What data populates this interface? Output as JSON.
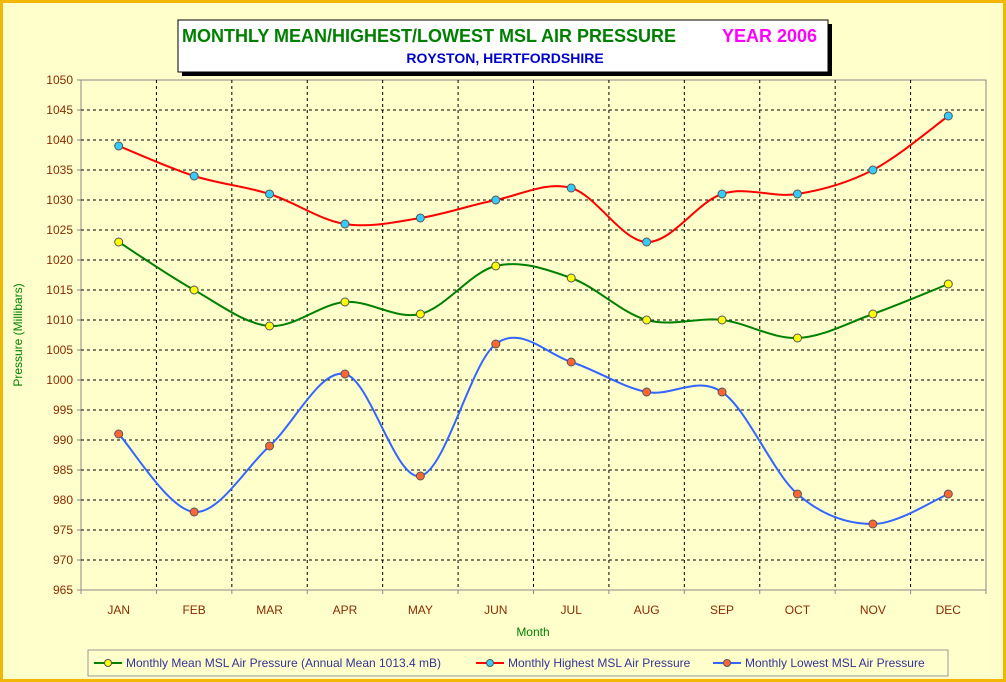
{
  "chart_data": {
    "type": "line",
    "title": "MONTHLY MEAN/HIGHEST/LOWEST MSL AIR PRESSURE",
    "title_year": "YEAR 2006",
    "subtitle": "ROYSTON, HERTFORDSHIRE",
    "xlabel": "Month",
    "ylabel": "Pressure (Millibars)",
    "ylim": [
      965,
      1050
    ],
    "ytick_step": 5,
    "grid": true,
    "legend_position": "bottom",
    "categories": [
      "JAN",
      "FEB",
      "MAR",
      "APR",
      "MAY",
      "JUN",
      "JUL",
      "AUG",
      "SEP",
      "OCT",
      "NOV",
      "DEC"
    ],
    "series": [
      {
        "name": "Monthly Mean MSL Air Pressure (Annual Mean 1013.4 mB)",
        "line_color": "#008000",
        "marker_color": "#ffff00",
        "values": [
          1023,
          1015,
          1009,
          1013,
          1011,
          1019,
          1017,
          1010,
          1010,
          1007,
          1011,
          1016
        ]
      },
      {
        "name": "Monthly Highest MSL Air Pressure",
        "line_color": "#ff0000",
        "marker_color": "#33ccff",
        "values": [
          1039,
          1034,
          1031,
          1026,
          1027,
          1030,
          1032,
          1023,
          1031,
          1031,
          1035,
          1044
        ]
      },
      {
        "name": "Monthly Lowest MSL Air Pressure",
        "line_color": "#3366ff",
        "marker_color": "#ff6633",
        "values": [
          991,
          978,
          989,
          1001,
          984,
          1006,
          1003,
          998,
          998,
          981,
          976,
          981
        ]
      }
    ]
  }
}
